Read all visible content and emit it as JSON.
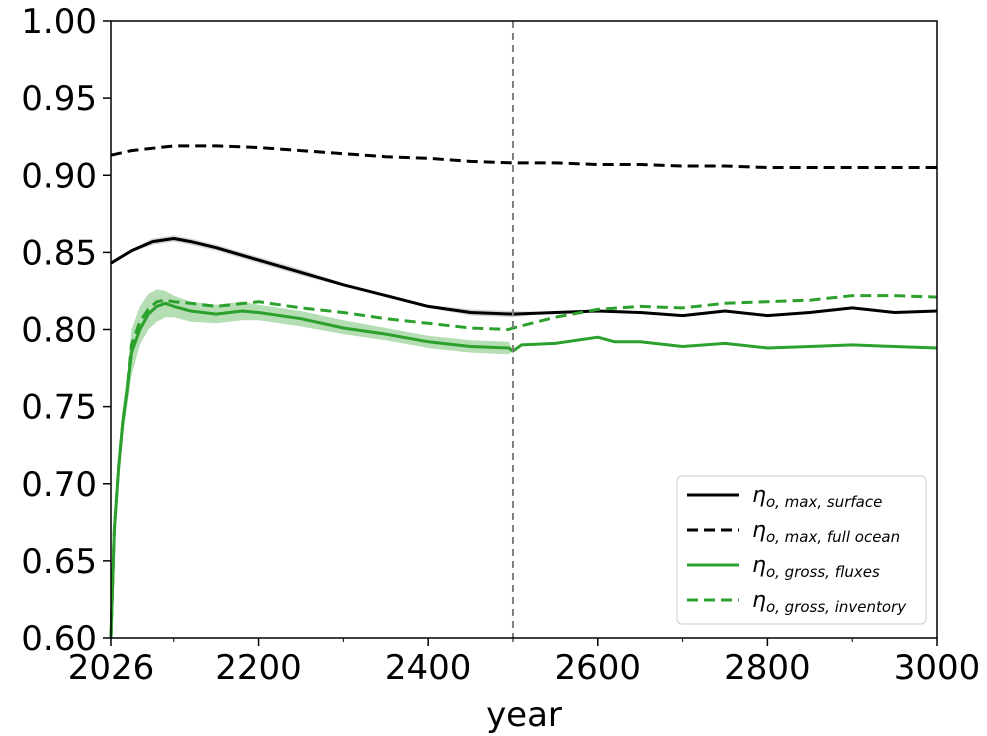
{
  "chart_data": {
    "type": "line",
    "xlabel": "year",
    "ylabel": "",
    "xlim": [
      2026,
      3000
    ],
    "ylim": [
      0.6,
      1.0
    ],
    "x_ticks": [
      {
        "value": 2026,
        "label": "2026"
      },
      {
        "value": 2200,
        "label": "2200"
      },
      {
        "value": 2400,
        "label": "2400"
      },
      {
        "value": 2600,
        "label": "2600"
      },
      {
        "value": 2800,
        "label": "2800"
      },
      {
        "value": 3000,
        "label": "3000"
      }
    ],
    "y_ticks": [
      {
        "value": 0.6,
        "label": "0.60"
      },
      {
        "value": 0.65,
        "label": "0.65"
      },
      {
        "value": 0.7,
        "label": "0.70"
      },
      {
        "value": 0.75,
        "label": "0.75"
      },
      {
        "value": 0.8,
        "label": "0.80"
      },
      {
        "value": 0.85,
        "label": "0.85"
      },
      {
        "value": 0.9,
        "label": "0.90"
      },
      {
        "value": 0.95,
        "label": "0.95"
      },
      {
        "value": 1.0,
        "label": "1.00"
      }
    ],
    "vline": {
      "x": 2500,
      "color": "#808080",
      "style": "dashed"
    },
    "legend_position": "lower-right",
    "series": [
      {
        "label_main": "η",
        "label_sub": "o, max, surface",
        "color": "#000000",
        "style": "solid",
        "x": [
          2026,
          2050,
          2075,
          2100,
          2120,
          2150,
          2200,
          2250,
          2300,
          2350,
          2400,
          2450,
          2500,
          2550,
          2600,
          2650,
          2700,
          2750,
          2800,
          2850,
          2900,
          2950,
          3000
        ],
        "y": [
          0.843,
          0.851,
          0.857,
          0.859,
          0.857,
          0.853,
          0.845,
          0.837,
          0.829,
          0.822,
          0.815,
          0.811,
          0.81,
          0.811,
          0.812,
          0.811,
          0.809,
          0.812,
          0.809,
          0.811,
          0.814,
          0.811,
          0.812
        ],
        "band_low": [
          0.843,
          0.85,
          0.855,
          0.857,
          0.855,
          0.851,
          0.843,
          0.835,
          0.828,
          0.821,
          0.814,
          0.809,
          0.808,
          0.811,
          0.812,
          0.811,
          0.809,
          0.812,
          0.809,
          0.811,
          0.814,
          0.811,
          0.812
        ],
        "band_high": [
          0.843,
          0.852,
          0.859,
          0.861,
          0.859,
          0.855,
          0.847,
          0.839,
          0.83,
          0.823,
          0.816,
          0.813,
          0.812,
          0.811,
          0.812,
          0.811,
          0.809,
          0.812,
          0.809,
          0.811,
          0.814,
          0.811,
          0.812
        ],
        "band_color": "#888888"
      },
      {
        "label_main": "η",
        "label_sub": "o, max, full ocean",
        "color": "#000000",
        "style": "dashed",
        "x": [
          2026,
          2050,
          2100,
          2150,
          2200,
          2250,
          2300,
          2350,
          2400,
          2450,
          2500,
          2550,
          2600,
          2650,
          2700,
          2750,
          2800,
          2850,
          2900,
          2950,
          3000
        ],
        "y": [
          0.913,
          0.916,
          0.919,
          0.919,
          0.918,
          0.916,
          0.914,
          0.912,
          0.911,
          0.909,
          0.908,
          0.908,
          0.907,
          0.907,
          0.906,
          0.906,
          0.905,
          0.905,
          0.905,
          0.905,
          0.905
        ]
      },
      {
        "label_main": "η",
        "label_sub": "o, gross, fluxes",
        "color": "#2ca02c",
        "style": "solid",
        "x": [
          2026,
          2030,
          2035,
          2040,
          2045,
          2050,
          2060,
          2070,
          2080,
          2090,
          2100,
          2120,
          2150,
          2180,
          2200,
          2250,
          2300,
          2350,
          2400,
          2450,
          2495,
          2500,
          2510,
          2550,
          2600,
          2620,
          2650,
          2700,
          2750,
          2800,
          2850,
          2900,
          2950,
          3000
        ],
        "y": [
          0.6,
          0.67,
          0.71,
          0.74,
          0.76,
          0.785,
          0.8,
          0.81,
          0.815,
          0.817,
          0.815,
          0.812,
          0.81,
          0.812,
          0.811,
          0.807,
          0.801,
          0.797,
          0.792,
          0.789,
          0.788,
          0.786,
          0.79,
          0.791,
          0.795,
          0.792,
          0.792,
          0.789,
          0.791,
          0.788,
          0.789,
          0.79,
          0.789,
          0.788
        ],
        "band_low": [
          0.6,
          0.66,
          0.7,
          0.73,
          0.75,
          0.77,
          0.79,
          0.8,
          0.805,
          0.808,
          0.808,
          0.805,
          0.804,
          0.806,
          0.806,
          0.802,
          0.797,
          0.793,
          0.788,
          0.785,
          0.784,
          0.786,
          0.79,
          0.791,
          0.795,
          0.792,
          0.792,
          0.789,
          0.791,
          0.788,
          0.789,
          0.79,
          0.789,
          0.788
        ],
        "band_high": [
          0.6,
          0.68,
          0.72,
          0.75,
          0.77,
          0.8,
          0.815,
          0.823,
          0.826,
          0.825,
          0.822,
          0.818,
          0.816,
          0.818,
          0.816,
          0.812,
          0.806,
          0.801,
          0.796,
          0.793,
          0.792,
          0.786,
          0.79,
          0.791,
          0.795,
          0.792,
          0.792,
          0.789,
          0.791,
          0.788,
          0.789,
          0.79,
          0.789,
          0.788
        ],
        "band_color": "#2ca02c"
      },
      {
        "label_main": "η",
        "label_sub": "o, gross, inventory",
        "color": "#2ca02c",
        "style": "dashed",
        "x": [
          2026,
          2030,
          2035,
          2040,
          2045,
          2050,
          2060,
          2070,
          2080,
          2090,
          2100,
          2120,
          2150,
          2200,
          2250,
          2300,
          2350,
          2400,
          2450,
          2495,
          2500,
          2550,
          2600,
          2650,
          2700,
          2750,
          2800,
          2850,
          2900,
          2950,
          3000
        ],
        "y": [
          0.6,
          0.67,
          0.71,
          0.74,
          0.76,
          0.79,
          0.805,
          0.813,
          0.818,
          0.819,
          0.818,
          0.817,
          0.815,
          0.818,
          0.814,
          0.811,
          0.807,
          0.804,
          0.801,
          0.8,
          0.801,
          0.808,
          0.813,
          0.815,
          0.814,
          0.817,
          0.818,
          0.819,
          0.822,
          0.822,
          0.821
        ]
      }
    ]
  }
}
